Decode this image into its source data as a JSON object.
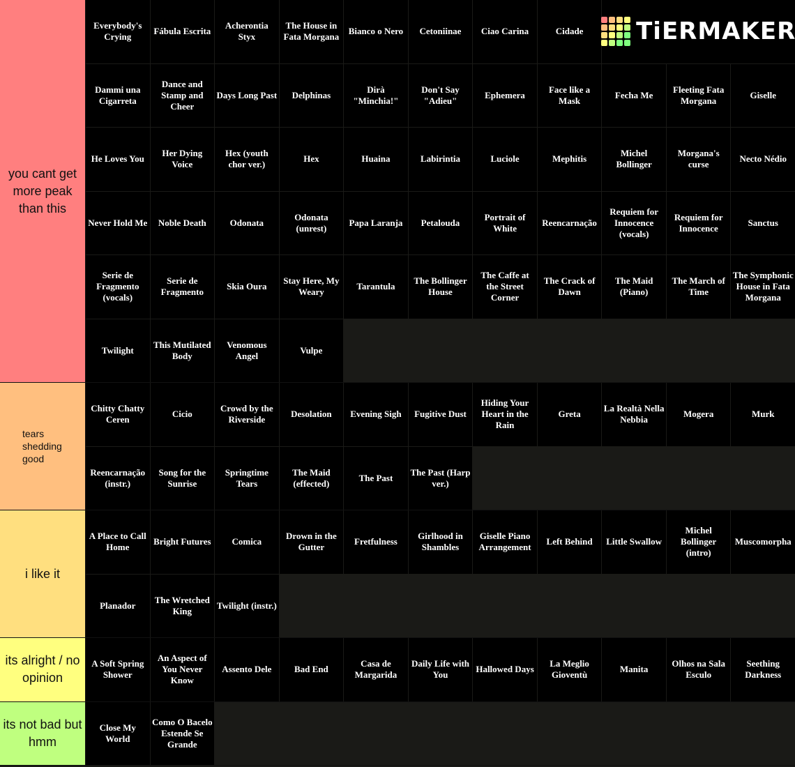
{
  "logo": "TiERMAKER",
  "tiers": [
    {
      "label": "you cant get more peak than this",
      "color": "#ff7f7f",
      "items": [
        "Everybody's Crying",
        "Fábula Escrita",
        "Acherontia Styx",
        "The House in Fata Morgana",
        "Bianco o Nero",
        "Cetoniinae",
        "Ciao Carina",
        "Cidade",
        "Dammi una Cigarreta",
        "Dance and Stamp and Cheer",
        "Days Long Past",
        "Delphinas",
        "Dirà \"Minchia!\"",
        "Don't Say \"Adieu\"",
        "Ephemera",
        "Face like a Mask",
        "Fecha Me",
        "Fleeting Fata Morgana",
        "Giselle",
        "He Loves You",
        "Her Dying Voice",
        "Hex (youth chor ver.)",
        "Hex",
        "Huaina",
        "Labirintia",
        "Luciole",
        "Mephitis",
        "Michel Bollinger",
        "Morgana's curse",
        "Necto Nédio",
        "Never Hold Me",
        "Noble Death",
        "Odonata",
        "Odonata (unrest)",
        "Papa Laranja",
        "Petalouda",
        "Portrait of White",
        "Reencarnação",
        "Requiem for Innocence (vocals)",
        "Requiem for Innocence",
        "Sanctus",
        "Serie de Fragmento (vocals)",
        "Serie de Fragmento",
        "Skia Oura",
        "Stay Here, My Weary",
        "Tarantula",
        "The Bollinger House",
        "The Caffe at the Street Corner",
        "The Crack of Dawn",
        "The Maid (Piano)",
        "The March of Time",
        "The Symphonic House in Fata Morgana",
        "Twilight",
        "This Mutilated Body",
        "Venomous Angel",
        "Vulpe"
      ]
    },
    {
      "label": "tears shedding good",
      "color": "#ffbf7f",
      "items": [
        "Chitty Chatty Ceren",
        "Cicio",
        "Crowd by the Riverside",
        "Desolation",
        "Evening Sigh",
        "Fugitive Dust",
        "Hiding Your Heart in the Rain",
        "Greta",
        "La Realtà Nella Nebbia",
        "Mogera",
        "Murk",
        "Reencarnação (instr.)",
        "Song for the Sunrise",
        "Springtime Tears",
        "The Maid (effected)",
        "The Past",
        "The Past (Harp ver.)"
      ]
    },
    {
      "label": "i like it",
      "color": "#ffdf7f",
      "items": [
        "A Place to Call Home",
        "Bright Futures",
        "Comica",
        "Drown in the Gutter",
        "Fretfulness",
        "Girlhood in Shambles",
        "Giselle Piano Arrangement",
        "Left Behind",
        "Little Swallow",
        "Michel Bollinger (intro)",
        "Muscomorpha",
        "Planador",
        "The Wretched King",
        "Twilight (instr.)"
      ]
    },
    {
      "label": "its alright / no opinion",
      "color": "#ffff7f",
      "items": [
        "A Soft Spring Shower",
        "An Aspect of You Never Know",
        "Assento Dele",
        "Bad End",
        "Casa de Margarida",
        "Daily Life with You",
        "Hallowed Days",
        "La Meglio Gioventù",
        "Manita",
        "Olhos na Sala Esculo",
        "Seething Darkness"
      ]
    },
    {
      "label": "its not bad but hmm",
      "color": "#bfff7f",
      "items": [
        "Close My World",
        "Como O Bacelo Estende Se Grande"
      ]
    }
  ]
}
